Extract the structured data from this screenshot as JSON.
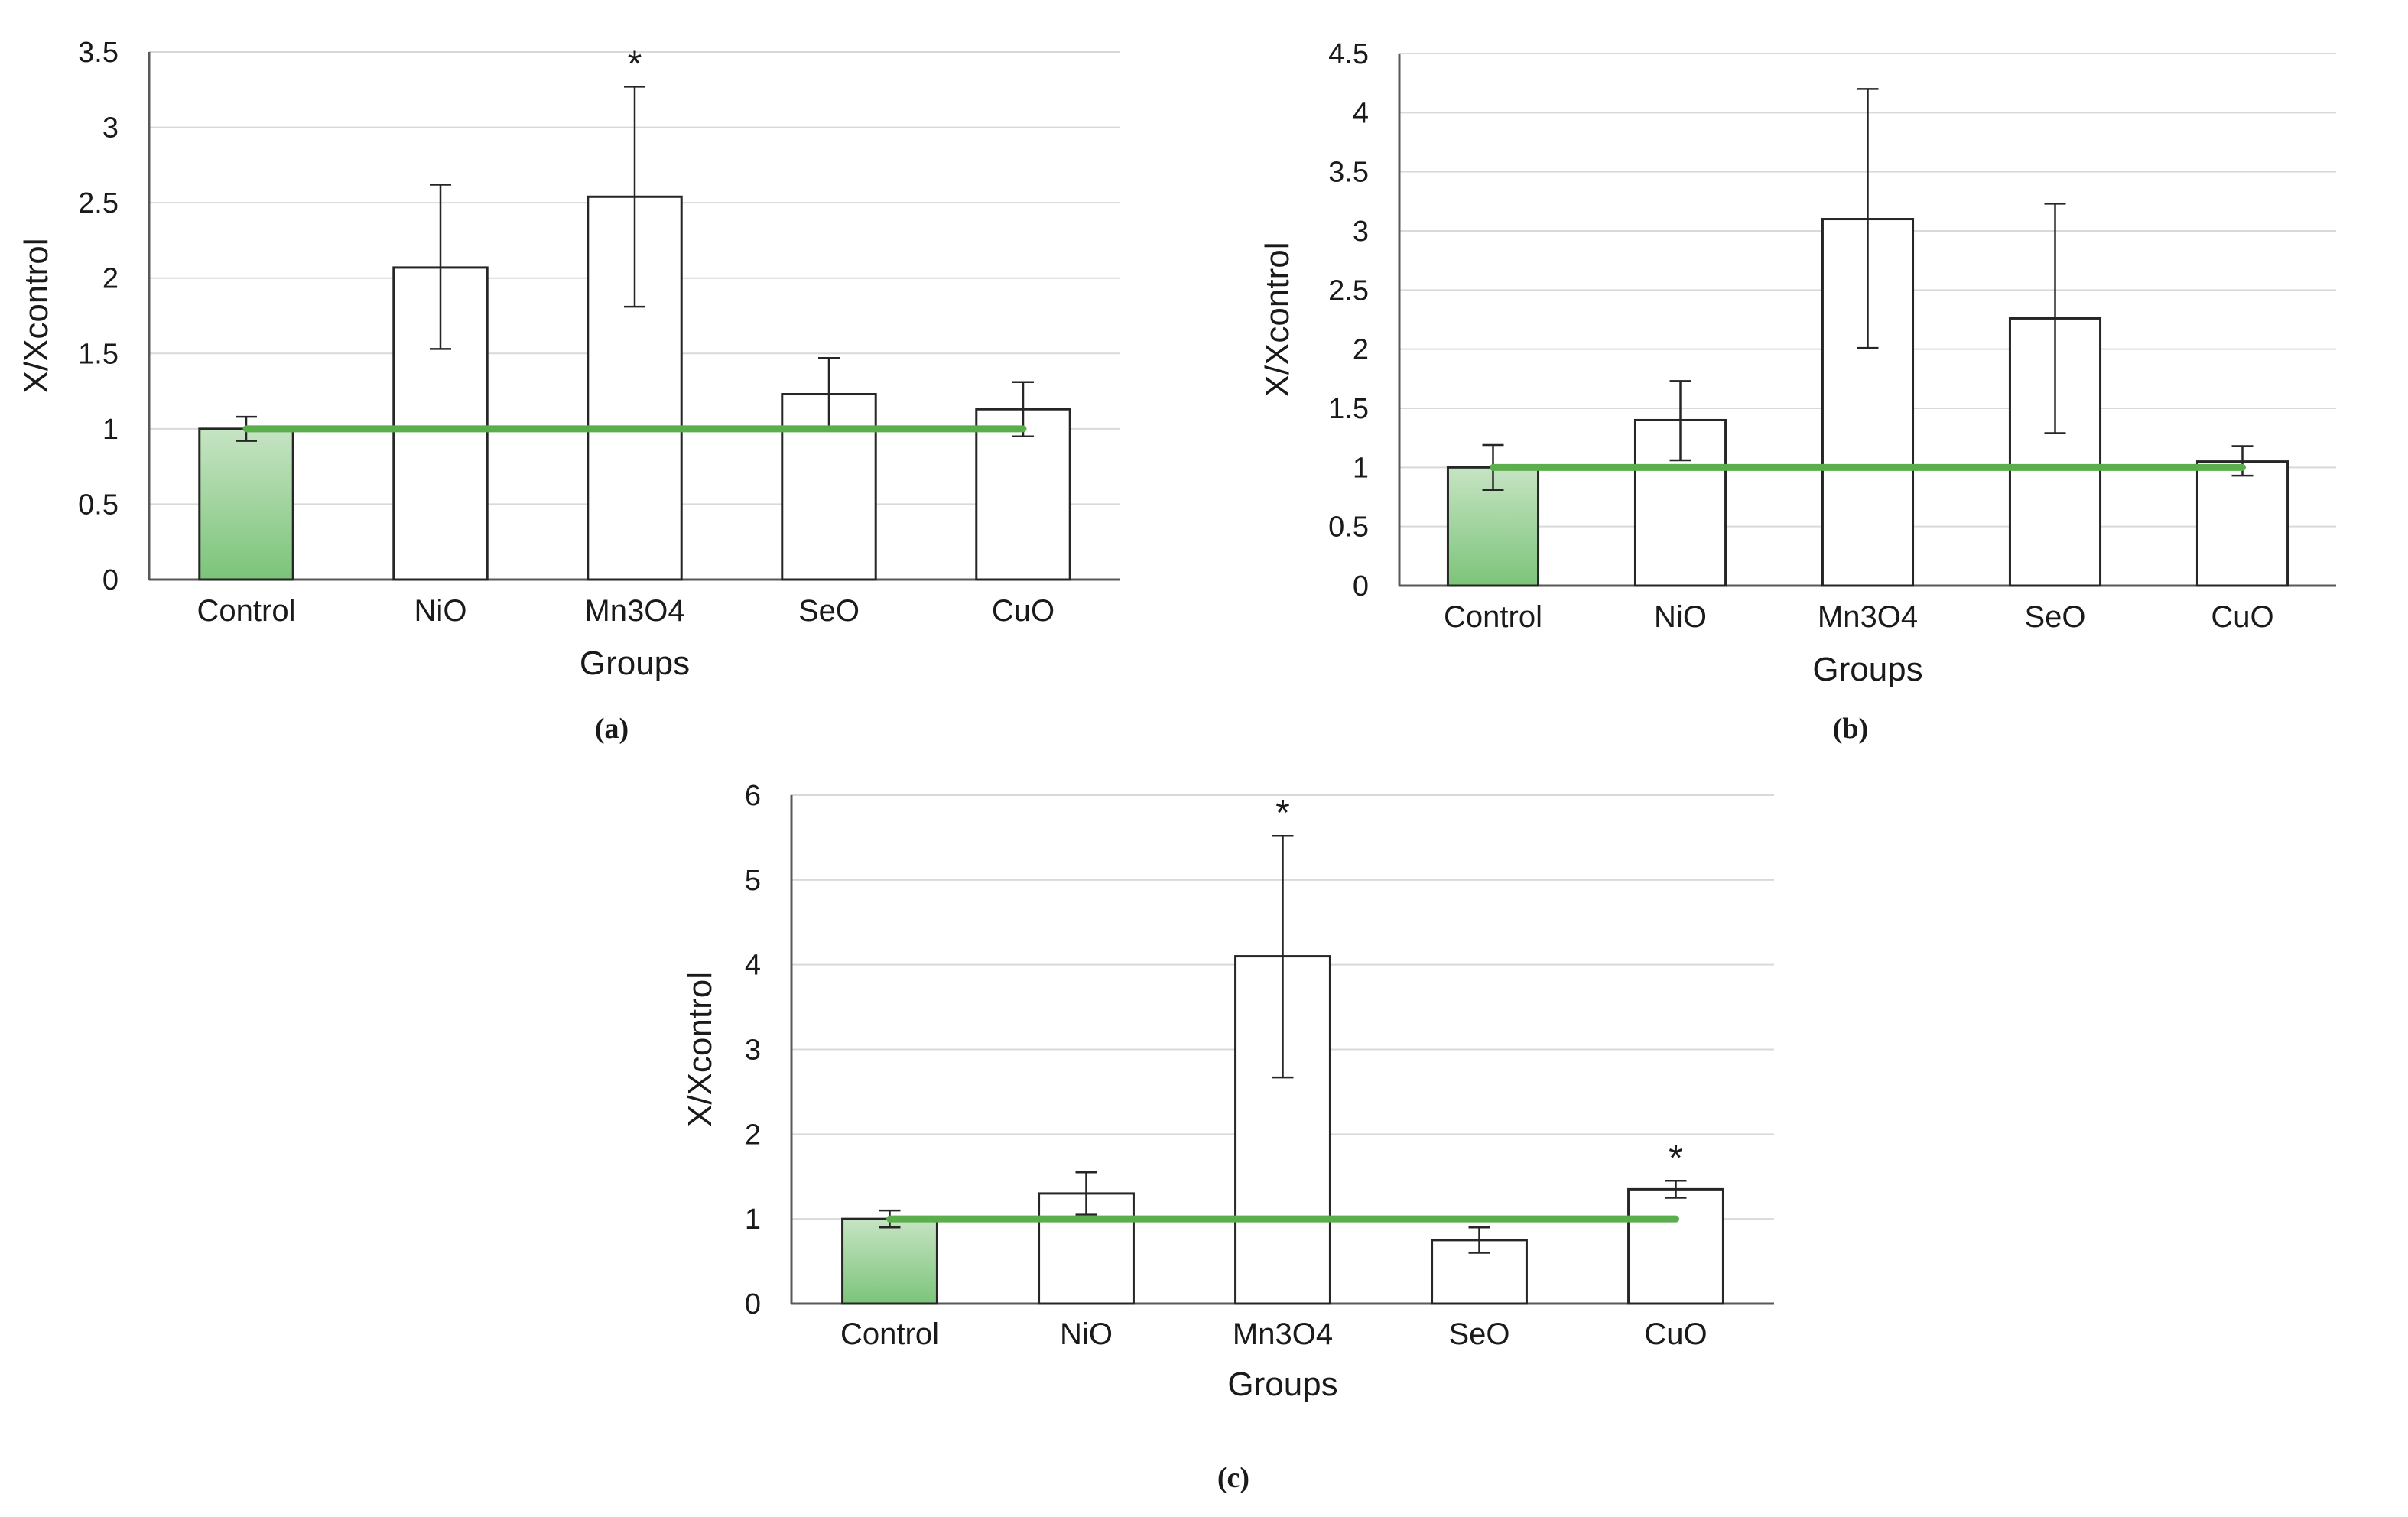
{
  "chart_data": [
    {
      "id": "a",
      "type": "bar",
      "caption": "(a)",
      "categories": [
        "Control",
        "NiO",
        "Mn3O4",
        "SeO",
        "CuO"
      ],
      "values": [
        1.0,
        2.07,
        2.54,
        1.23,
        1.13
      ],
      "error_upper": [
        1.08,
        2.62,
        3.27,
        1.47,
        1.31
      ],
      "error_lower": [
        0.92,
        1.53,
        1.81,
        1.0,
        0.95
      ],
      "significant": [
        false,
        false,
        true,
        false,
        false
      ],
      "significance_symbol": "*",
      "reference_line": 1,
      "ylim": [
        0,
        3.5
      ],
      "yticks": [
        "0",
        "0.5",
        "1",
        "1.5",
        "2",
        "2.5",
        "3",
        "3.5"
      ],
      "xlabel": "Groups",
      "ylabel": "X/Xcontrol",
      "grid": true,
      "colors": {
        "control": "#7cc47a",
        "bars": "#ffffff",
        "reference_line": "#5aae4c"
      }
    },
    {
      "id": "b",
      "type": "bar",
      "caption": "(b)",
      "categories": [
        "Control",
        "NiO",
        "Mn3O4",
        "SeO",
        "CuO"
      ],
      "values": [
        1.0,
        1.4,
        3.1,
        2.26,
        1.05
      ],
      "error_upper": [
        1.19,
        1.73,
        4.2,
        3.23,
        1.18
      ],
      "error_lower": [
        0.81,
        1.06,
        2.01,
        1.29,
        0.93
      ],
      "significant": [
        false,
        false,
        false,
        false,
        false
      ],
      "significance_symbol": "*",
      "reference_line": 1,
      "ylim": [
        0,
        4.5
      ],
      "yticks": [
        "0",
        "0.5",
        "1",
        "1.5",
        "2",
        "2.5",
        "3",
        "3.5",
        "4",
        "4.5"
      ],
      "xlabel": "Groups",
      "ylabel": "X/Xcontrol",
      "grid": true,
      "colors": {
        "control": "#7cc47a",
        "bars": "#ffffff",
        "reference_line": "#5aae4c"
      }
    },
    {
      "id": "c",
      "type": "bar",
      "caption": "(c)",
      "categories": [
        "Control",
        "NiO",
        "Mn3O4",
        "SeO",
        "CuO"
      ],
      "values": [
        1.0,
        1.3,
        4.1,
        0.75,
        1.35
      ],
      "error_upper": [
        1.1,
        1.55,
        5.52,
        0.9,
        1.45
      ],
      "error_lower": [
        0.9,
        1.05,
        2.67,
        0.6,
        1.25
      ],
      "significant": [
        false,
        false,
        true,
        false,
        true
      ],
      "significance_symbol": "*",
      "reference_line": 1,
      "ylim": [
        0,
        6
      ],
      "yticks": [
        "0",
        "1",
        "2",
        "3",
        "4",
        "5",
        "6"
      ],
      "xlabel": "Groups",
      "ylabel": "X/Xcontrol",
      "grid": true,
      "colors": {
        "control": "#7cc47a",
        "bars": "#ffffff",
        "reference_line": "#5aae4c"
      }
    }
  ]
}
